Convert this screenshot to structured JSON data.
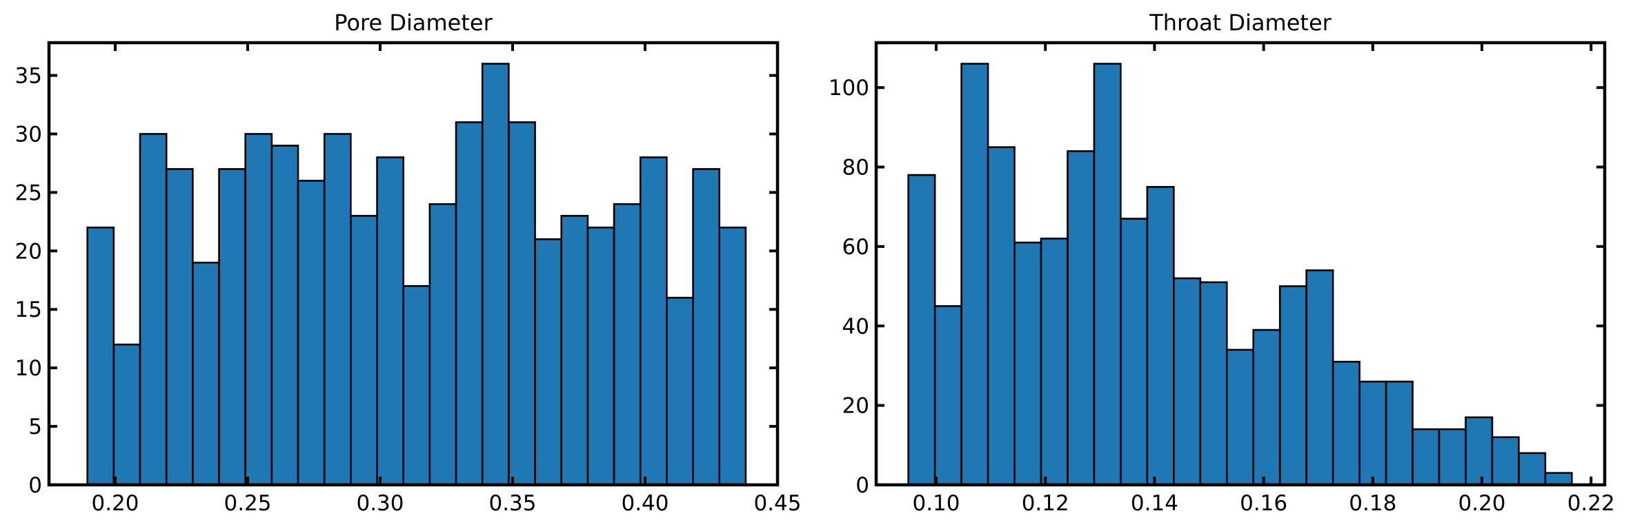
{
  "chart_data": [
    {
      "type": "bar",
      "title": "Pore Diameter",
      "xlabel": "",
      "ylabel": "",
      "bin_start": 0.1895,
      "bin_width": 0.00994,
      "values": [
        22,
        12,
        30,
        27,
        19,
        27,
        30,
        29,
        26,
        30,
        23,
        28,
        17,
        24,
        31,
        36,
        31,
        21,
        23,
        22,
        24,
        28,
        16,
        27,
        22
      ],
      "xlim": [
        0.175,
        0.45
      ],
      "ylim": [
        0,
        37.8
      ],
      "xticks": [
        0.2,
        0.25,
        0.3,
        0.35,
        0.4,
        0.45
      ],
      "xtick_labels": [
        "0.20",
        "0.25",
        "0.30",
        "0.35",
        "0.40",
        "0.45"
      ],
      "yticks": [
        0,
        5,
        10,
        15,
        20,
        25,
        30,
        35
      ],
      "ytick_labels": [
        "0",
        "5",
        "10",
        "15",
        "20",
        "25",
        "30",
        "35"
      ],
      "grid": false,
      "bar_color": "#1f77b4"
    },
    {
      "type": "bar",
      "title": "Throat Diameter",
      "xlabel": "",
      "ylabel": "",
      "bin_start": 0.0949,
      "bin_width": 0.004863,
      "values": [
        78,
        45,
        106,
        85,
        61,
        62,
        84,
        106,
        67,
        75,
        52,
        51,
        34,
        39,
        50,
        54,
        31,
        26,
        26,
        14,
        14,
        17,
        12,
        8,
        3
      ],
      "xlim": [
        0.089,
        0.2225
      ],
      "ylim": [
        0,
        111.3
      ],
      "xticks": [
        0.1,
        0.12,
        0.14,
        0.16,
        0.18,
        0.2,
        0.22
      ],
      "xtick_labels": [
        "0.10",
        "0.12",
        "0.14",
        "0.16",
        "0.18",
        "0.20",
        "0.22"
      ],
      "yticks": [
        0,
        20,
        40,
        60,
        80,
        100
      ],
      "ytick_labels": [
        "0",
        "20",
        "40",
        "60",
        "80",
        "100"
      ],
      "grid": false,
      "bar_color": "#1f77b4"
    }
  ]
}
